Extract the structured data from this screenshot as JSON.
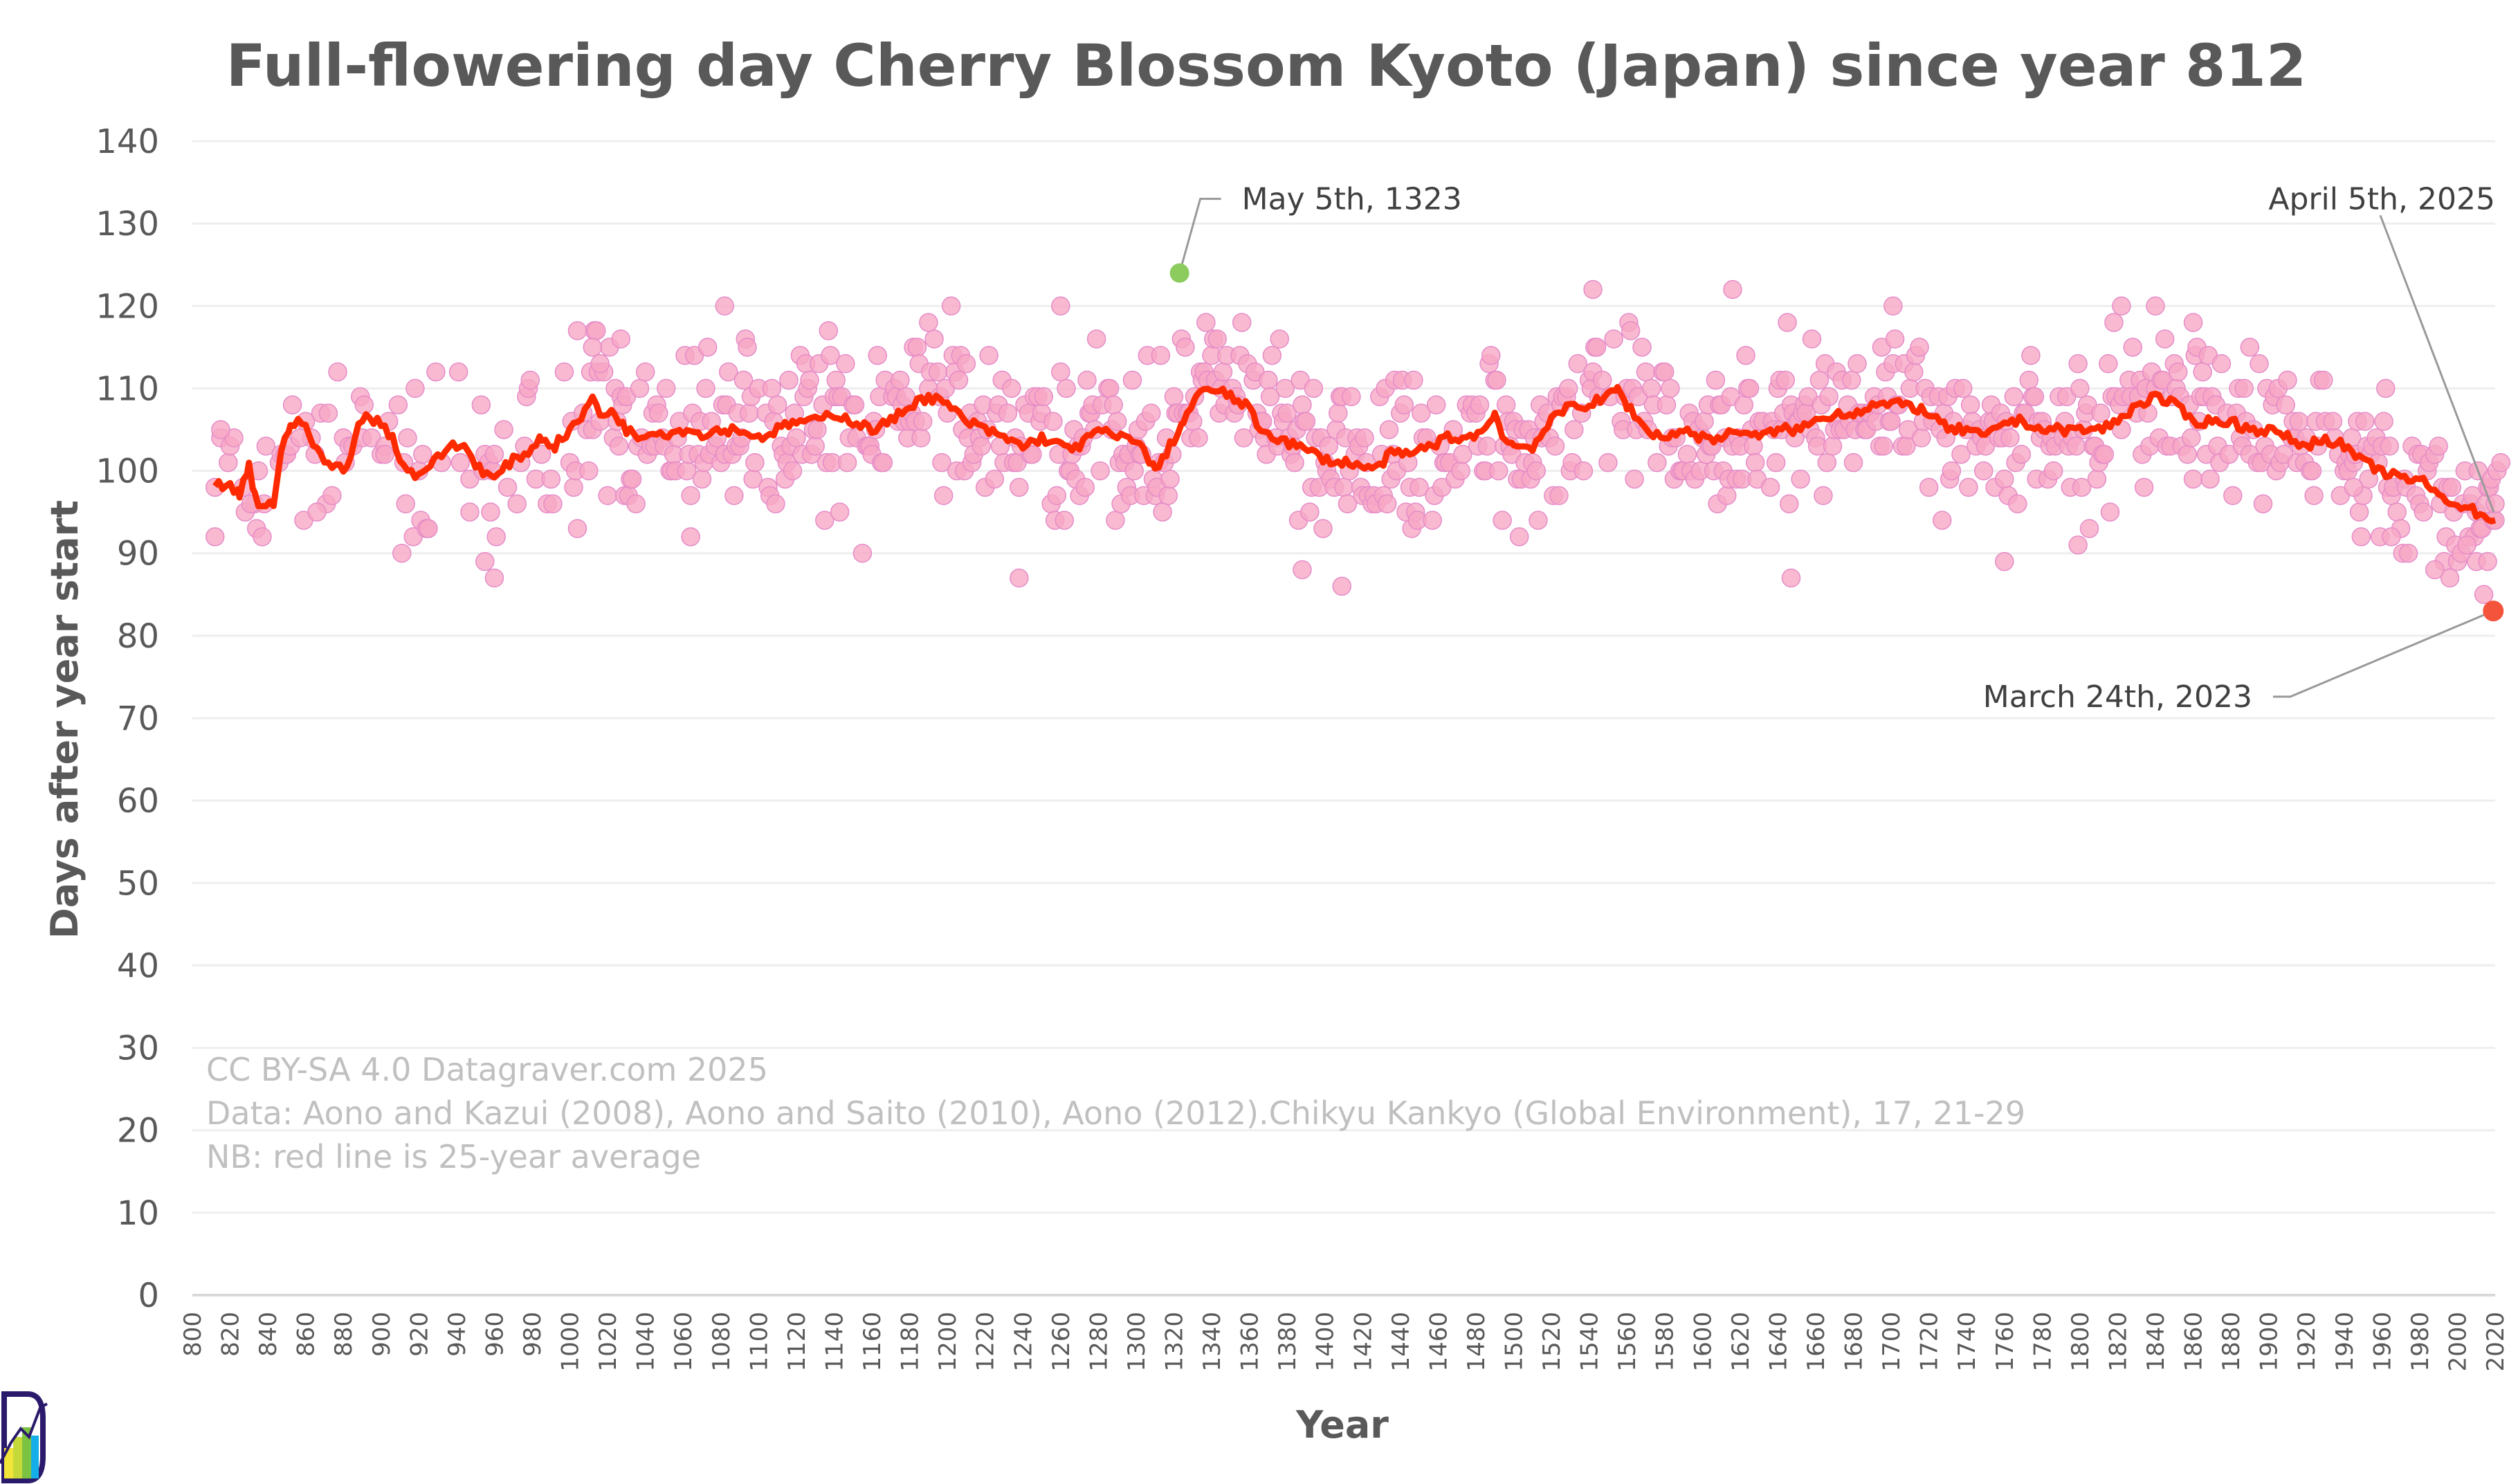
{
  "chart_data": {
    "type": "scatter",
    "title": "Full-flowering day Cherry Blossom Kyoto (Japan) since year 812",
    "xlabel": "Year",
    "ylabel": "Days after year start",
    "xlim": [
      800,
      2020
    ],
    "ylim": [
      0,
      140
    ],
    "x_ticks": [
      800,
      820,
      840,
      860,
      880,
      900,
      920,
      940,
      960,
      980,
      1000,
      1020,
      1040,
      1060,
      1080,
      1100,
      1120,
      1140,
      1160,
      1180,
      1200,
      1220,
      1240,
      1260,
      1280,
      1300,
      1320,
      1340,
      1360,
      1380,
      1400,
      1420,
      1440,
      1460,
      1480,
      1500,
      1520,
      1540,
      1560,
      1580,
      1600,
      1620,
      1640,
      1660,
      1680,
      1700,
      1720,
      1740,
      1760,
      1780,
      1800,
      1820,
      1840,
      1860,
      1880,
      1900,
      1920,
      1940,
      1960,
      1980,
      2000,
      2020
    ],
    "y_ticks": [
      0,
      10,
      20,
      30,
      40,
      50,
      60,
      70,
      80,
      90,
      100,
      110,
      120,
      130,
      140
    ],
    "grid": true,
    "series": [
      {
        "name": "Full-flowering day",
        "kind": "scatter",
        "color": "#f7a8c4",
        "stroke": "#e58cc8",
        "sample_points": [
          [
            812,
            92
          ],
          [
            815,
            105
          ],
          [
            831,
            96
          ],
          [
            853,
            108
          ],
          [
            857,
            104
          ],
          [
            866,
            95
          ],
          [
            889,
            109
          ],
          [
            891,
            108
          ],
          [
            902,
            102
          ],
          [
            918,
            110
          ],
          [
            947,
            95
          ],
          [
            955,
            89
          ],
          [
            960,
            87
          ],
          [
            967,
            98
          ],
          [
            1004,
            117
          ],
          [
            1012,
            115
          ],
          [
            1016,
            113
          ],
          [
            1027,
            116
          ],
          [
            1064,
            92
          ],
          [
            1082,
            120
          ],
          [
            1155,
            90
          ],
          [
            1190,
            118
          ],
          [
            1238,
            87
          ],
          [
            1260,
            120
          ],
          [
            1323,
            124
          ],
          [
            1388,
            88
          ],
          [
            1409,
            86
          ],
          [
            1542,
            122
          ],
          [
            1616,
            122
          ],
          [
            1647,
            87
          ],
          [
            1701,
            120
          ],
          [
            1760,
            89
          ],
          [
            1799,
            91
          ],
          [
            1822,
            120
          ],
          [
            1840,
            120
          ],
          [
            1860,
            118
          ],
          [
            1890,
            115
          ],
          [
            1945,
            98
          ],
          [
            1965,
            92
          ],
          [
            1988,
            88
          ],
          [
            2005,
            91
          ],
          [
            2010,
            89
          ],
          [
            2014,
            85
          ],
          [
            2016,
            89
          ],
          [
            2020,
            96
          ]
        ],
        "density_note": "approx. 800+ yearly observations, mostly 95–115 days, spread across 812–2025"
      },
      {
        "name": "25-year average",
        "kind": "line",
        "color": "#ff2a00",
        "points": [
          [
            812,
            98.5
          ],
          [
            820,
            98
          ],
          [
            825,
            97
          ],
          [
            830,
            100.5
          ],
          [
            833,
            97
          ],
          [
            835,
            96
          ],
          [
            843,
            96
          ],
          [
            847,
            102
          ],
          [
            852,
            106
          ],
          [
            858,
            106
          ],
          [
            862,
            104
          ],
          [
            868,
            102
          ],
          [
            872,
            100.5
          ],
          [
            882,
            100.5
          ],
          [
            886,
            104
          ],
          [
            890,
            106.5
          ],
          [
            900,
            106
          ],
          [
            906,
            104
          ],
          [
            912,
            100.5
          ],
          [
            918,
            99.5
          ],
          [
            928,
            101
          ],
          [
            936,
            103
          ],
          [
            944,
            103
          ],
          [
            950,
            101
          ],
          [
            956,
            99.5
          ],
          [
            960,
            99
          ],
          [
            968,
            101
          ],
          [
            976,
            102
          ],
          [
            985,
            104
          ],
          [
            992,
            103
          ],
          [
            1000,
            105
          ],
          [
            1008,
            107
          ],
          [
            1012,
            109
          ],
          [
            1016,
            107
          ],
          [
            1024,
            107
          ],
          [
            1030,
            105
          ],
          [
            1036,
            104
          ],
          [
            1044,
            105
          ],
          [
            1050,
            104.5
          ],
          [
            1060,
            105
          ],
          [
            1070,
            104.5
          ],
          [
            1080,
            105
          ],
          [
            1090,
            105
          ],
          [
            1100,
            104
          ],
          [
            1110,
            105
          ],
          [
            1120,
            106
          ],
          [
            1130,
            106
          ],
          [
            1140,
            107
          ],
          [
            1150,
            106
          ],
          [
            1160,
            105
          ],
          [
            1170,
            106
          ],
          [
            1180,
            108
          ],
          [
            1190,
            109
          ],
          [
            1200,
            108
          ],
          [
            1210,
            106
          ],
          [
            1220,
            105
          ],
          [
            1230,
            104
          ],
          [
            1240,
            103
          ],
          [
            1250,
            104
          ],
          [
            1260,
            103
          ],
          [
            1270,
            103
          ],
          [
            1280,
            105
          ],
          [
            1290,
            104
          ],
          [
            1300,
            104
          ],
          [
            1305,
            102
          ],
          [
            1310,
            100
          ],
          [
            1318,
            103
          ],
          [
            1325,
            106
          ],
          [
            1332,
            109
          ],
          [
            1340,
            110
          ],
          [
            1350,
            109
          ],
          [
            1358,
            108
          ],
          [
            1366,
            105
          ],
          [
            1375,
            104
          ],
          [
            1385,
            103
          ],
          [
            1395,
            102
          ],
          [
            1405,
            101
          ],
          [
            1415,
            101
          ],
          [
            1425,
            100
          ],
          [
            1435,
            102
          ],
          [
            1445,
            102
          ],
          [
            1455,
            103
          ],
          [
            1465,
            104
          ],
          [
            1475,
            104
          ],
          [
            1485,
            105
          ],
          [
            1490,
            107
          ],
          [
            1495,
            104
          ],
          [
            1500,
            103
          ],
          [
            1510,
            103
          ],
          [
            1520,
            106
          ],
          [
            1530,
            108
          ],
          [
            1540,
            108
          ],
          [
            1550,
            109
          ],
          [
            1555,
            110
          ],
          [
            1560,
            108
          ],
          [
            1570,
            105
          ],
          [
            1580,
            104
          ],
          [
            1590,
            105
          ],
          [
            1600,
            104
          ],
          [
            1610,
            104
          ],
          [
            1620,
            105
          ],
          [
            1630,
            104
          ],
          [
            1640,
            105
          ],
          [
            1650,
            105
          ],
          [
            1660,
            106
          ],
          [
            1670,
            107
          ],
          [
            1680,
            107
          ],
          [
            1690,
            108
          ],
          [
            1700,
            108
          ],
          [
            1710,
            108
          ],
          [
            1720,
            107
          ],
          [
            1730,
            105
          ],
          [
            1740,
            105
          ],
          [
            1750,
            104
          ],
          [
            1760,
            106
          ],
          [
            1770,
            106
          ],
          [
            1780,
            105
          ],
          [
            1790,
            105
          ],
          [
            1800,
            105
          ],
          [
            1810,
            105
          ],
          [
            1820,
            106
          ],
          [
            1830,
            108
          ],
          [
            1840,
            109
          ],
          [
            1850,
            108
          ],
          [
            1860,
            106
          ],
          [
            1870,
            106
          ],
          [
            1880,
            106
          ],
          [
            1890,
            105
          ],
          [
            1900,
            105
          ],
          [
            1910,
            104
          ],
          [
            1920,
            103
          ],
          [
            1930,
            104
          ],
          [
            1940,
            103
          ],
          [
            1950,
            101
          ],
          [
            1960,
            100
          ],
          [
            1970,
            99
          ],
          [
            1980,
            99
          ],
          [
            1990,
            97
          ],
          [
            2000,
            96
          ],
          [
            2010,
            95
          ],
          [
            2020,
            94
          ]
        ]
      }
    ],
    "highlights": [
      {
        "label": "May 5th, 1323",
        "year": 1323,
        "value": 124,
        "color": "#8ccc5e"
      },
      {
        "label": "April 5th, 2025",
        "year": 2025,
        "value": 95,
        "color": "#f7a8c4"
      },
      {
        "label": "March  24th, 2023",
        "year": 2023,
        "value": 83,
        "color": "#f4543c"
      }
    ],
    "credits": [
      "CC BY-SA 4.0  Datagraver.com 2025",
      "Data: Aono and Kazui (2008), Aono and Saito (2010), Aono (2012).Chikyu Kankyo (Global Environment), 17, 21-29",
      "NB: red line is 25-year average"
    ]
  },
  "logo": {
    "name": "Datagraver logo"
  }
}
